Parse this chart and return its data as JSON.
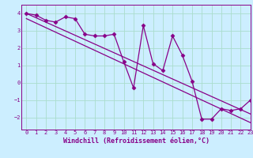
{
  "xlabel": "Windchill (Refroidissement éolien,°C)",
  "bg_color": "#cceeff",
  "grid_color": "#aaddcc",
  "line_color": "#880088",
  "xlim": [
    -0.5,
    23
  ],
  "ylim": [
    -2.7,
    4.5
  ],
  "yticks": [
    -2,
    -1,
    0,
    1,
    2,
    3,
    4
  ],
  "xticks": [
    0,
    1,
    2,
    3,
    4,
    5,
    6,
    7,
    8,
    9,
    10,
    11,
    12,
    13,
    14,
    15,
    16,
    17,
    18,
    19,
    20,
    21,
    22,
    23
  ],
  "series1_x": [
    0,
    1,
    2,
    3,
    4,
    5,
    6,
    7,
    8,
    9,
    10,
    11,
    12,
    13,
    14,
    15,
    16,
    17,
    18,
    19,
    20,
    21,
    22,
    23
  ],
  "series1_y": [
    4.0,
    3.9,
    3.6,
    3.5,
    3.8,
    3.7,
    2.8,
    2.7,
    2.7,
    2.8,
    1.2,
    -0.3,
    3.3,
    1.1,
    0.7,
    2.7,
    1.6,
    0.1,
    -2.1,
    -2.1,
    -1.5,
    -1.6,
    -1.5,
    -1.0
  ],
  "trend1_x": [
    0,
    23
  ],
  "trend1_y": [
    4.0,
    -1.8
  ],
  "trend2_x": [
    0,
    23
  ],
  "trend2_y": [
    3.7,
    -2.3
  ],
  "marker": "D",
  "markersize": 2.5,
  "linewidth": 0.9,
  "tick_fontsize": 5.0,
  "label_fontsize": 6.0
}
